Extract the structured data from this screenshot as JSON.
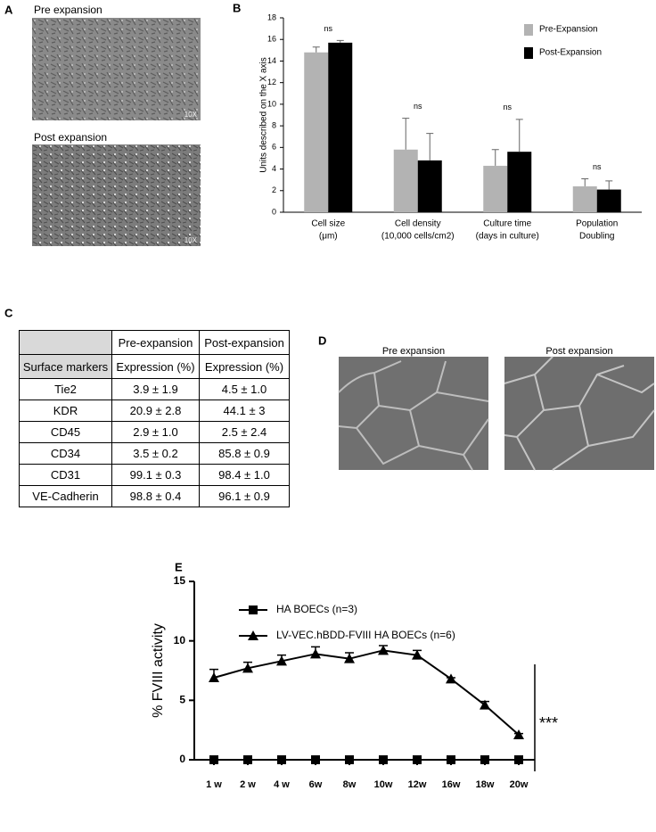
{
  "panel_a": {
    "label": "A",
    "images": [
      {
        "caption": "Pre expansion",
        "magnification": "10X"
      },
      {
        "caption": "Post expansion",
        "magnification": "10X"
      }
    ]
  },
  "panel_d": {
    "label": "D",
    "images": [
      {
        "caption": "Pre expansion"
      },
      {
        "caption": "Post expansion"
      }
    ]
  },
  "table": {
    "label": "C",
    "column_headers": [
      "Pre-expansion",
      "Post-expansion"
    ],
    "subheader": [
      "Surface markers",
      "Expression (%)",
      "Expression (%)"
    ],
    "rows": [
      [
        "Tie2",
        "3.9 ± 1.9",
        "4.5 ± 1.0"
      ],
      [
        "KDR",
        "20.9 ± 2.8",
        "44.1 ± 3"
      ],
      [
        "CD45",
        "2.9 ± 1.0",
        "2.5 ± 2.4"
      ],
      [
        "CD34",
        "3.5 ± 0.2",
        "85.8 ± 0.9"
      ],
      [
        "CD31",
        "99.1 ± 0.3",
        "98.4 ± 1.0"
      ],
      [
        "VE-Cadherin",
        "98.8 ± 0.4",
        "96.1 ± 0.9"
      ]
    ]
  },
  "chart_data": [
    {
      "panel_label": "B",
      "type": "bar",
      "ylabel": "Units described on the X axis",
      "categories": [
        [
          "Cell size",
          "(μm)"
        ],
        [
          "Cell density",
          "(10,000 cells/cm2)"
        ],
        [
          "Culture time",
          "(days in culture)"
        ],
        [
          "Population",
          "Doubling"
        ]
      ],
      "series": [
        {
          "name": "Pre-Expansion",
          "color": "#b3b3b3",
          "values": [
            14.8,
            5.8,
            4.3,
            2.4
          ],
          "errors": [
            0.5,
            2.9,
            1.5,
            0.7
          ]
        },
        {
          "name": "Post-Expansion",
          "color": "#000000",
          "values": [
            15.7,
            4.8,
            5.6,
            2.1
          ],
          "errors": [
            0.2,
            2.5,
            3.0,
            0.8
          ]
        }
      ],
      "annotations": [
        "ns",
        "ns",
        "ns",
        "ns"
      ],
      "ylim": [
        0,
        18
      ],
      "yticks": [
        0,
        2,
        4,
        6,
        8,
        10,
        12,
        14,
        16,
        18
      ],
      "legend": "upper right"
    },
    {
      "panel_label": "E",
      "type": "line",
      "ylabel": "% FVIII activity",
      "categories": [
        "1 w",
        "2 w",
        "4 w",
        "6w",
        "8w",
        "10w",
        "12w",
        "16w",
        "18w",
        "20w"
      ],
      "series": [
        {
          "name": "HA BOECs (n=3)",
          "color": "#000000",
          "marker": "square",
          "values": [
            0,
            0,
            0,
            0,
            0,
            0,
            0,
            0,
            0,
            0
          ]
        },
        {
          "name": "LV-VEC.hBDD-FVIII HA BOECs (n=6)",
          "color": "#000000",
          "marker": "triangle",
          "values": [
            6.9,
            7.7,
            8.3,
            8.9,
            8.5,
            9.2,
            8.8,
            6.8,
            4.6,
            2.1
          ],
          "errors": [
            0.7,
            0.5,
            0.5,
            0.6,
            0.5,
            0.4,
            0.4,
            0.1,
            0.3,
            0.1
          ]
        }
      ],
      "annotation": "***",
      "ylim": [
        0,
        15
      ],
      "yticks": [
        0,
        5,
        10,
        15
      ],
      "legend": "upper left"
    }
  ]
}
